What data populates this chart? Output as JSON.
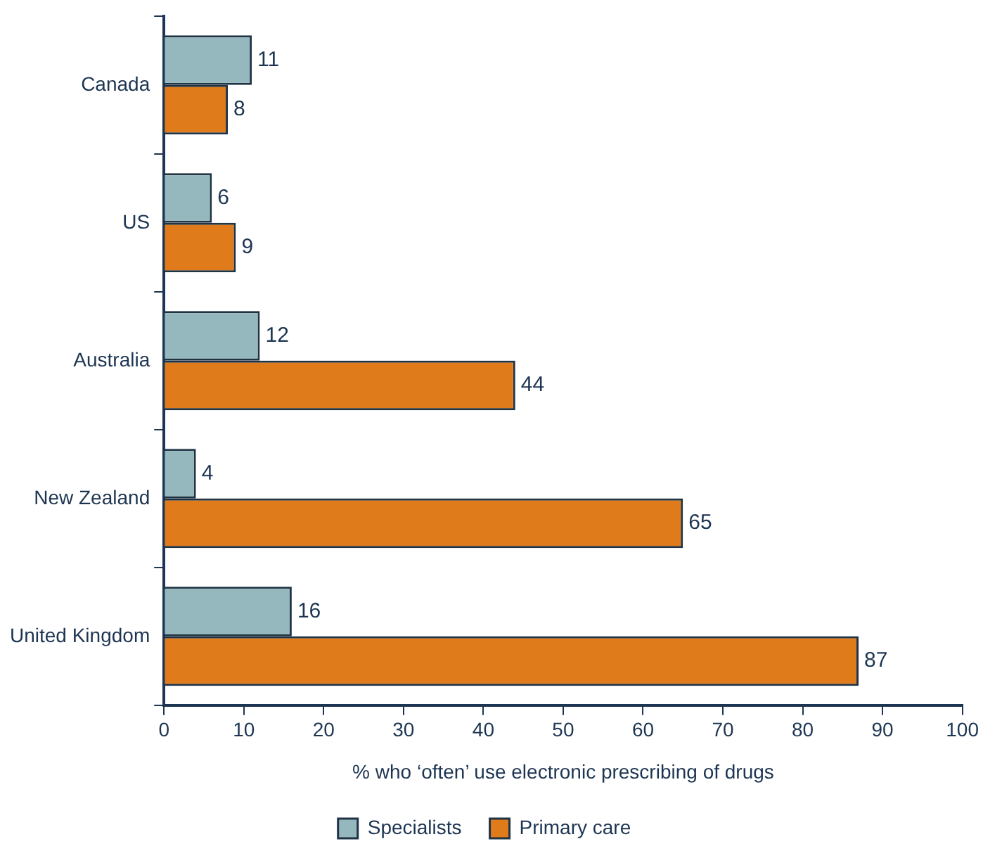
{
  "chart_data": {
    "type": "bar",
    "orientation": "horizontal",
    "categories": [
      "Canada",
      "US",
      "Australia",
      "New Zealand",
      "United Kingdom"
    ],
    "series": [
      {
        "name": "Specialists",
        "color": "#94b8bd",
        "values": [
          11,
          6,
          12,
          4,
          16
        ]
      },
      {
        "name": "Primary care",
        "color": "#e07b1c",
        "values": [
          8,
          9,
          44,
          65,
          87
        ]
      }
    ],
    "xlabel": "% who ‘often’ use electronic prescribing of drugs",
    "xlim": [
      0,
      100
    ],
    "xticks": [
      0,
      10,
      20,
      30,
      40,
      50,
      60,
      70,
      80,
      90,
      100
    ],
    "data_labels": true,
    "grid": false,
    "legend": "bottom"
  }
}
